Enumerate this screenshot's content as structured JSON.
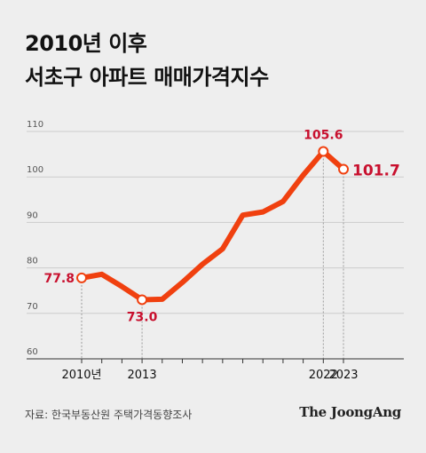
{
  "title_lines": [
    "2010년 이후",
    "서초구 아파트 매매가격지수"
  ],
  "source": "자료: 한국부동산원 주택가격동향조사",
  "brand": "The JoongAng",
  "colors": {
    "line": "#f0400f",
    "label": "#c8102e",
    "grid": "#cccccc",
    "axis": "#333333"
  },
  "chart_data": {
    "type": "line",
    "title": "2010년 이후 서초구 아파트 매매가격지수",
    "xlabel": "",
    "ylabel": "",
    "ylim": [
      60,
      110
    ],
    "yticks": [
      60,
      70,
      80,
      90,
      100,
      110
    ],
    "grid": true,
    "xtick_labels": [
      {
        "x": 2010,
        "label": "2010년"
      },
      {
        "x": 2013,
        "label": "2013"
      },
      {
        "x": 2022,
        "label": "2022"
      },
      {
        "x": 2023,
        "label": "2023"
      }
    ],
    "x": [
      2010,
      2011,
      2012,
      2013,
      2014,
      2015,
      2016,
      2017,
      2018,
      2019,
      2020,
      2021,
      2022,
      2023
    ],
    "series": [
      {
        "values": [
          77.8,
          78.6,
          75.9,
          73.0,
          73.1,
          76.8,
          80.8,
          84.2,
          91.6,
          92.3,
          94.6,
          100.4,
          105.6,
          101.7
        ]
      }
    ],
    "annotations": [
      {
        "x": 2010,
        "y": 77.8,
        "label": "77.8"
      },
      {
        "x": 2013,
        "y": 73.0,
        "label": "73.0"
      },
      {
        "x": 2022,
        "y": 105.6,
        "label": "105.6"
      },
      {
        "x": 2023,
        "y": 101.7,
        "label": "101.7"
      }
    ]
  }
}
